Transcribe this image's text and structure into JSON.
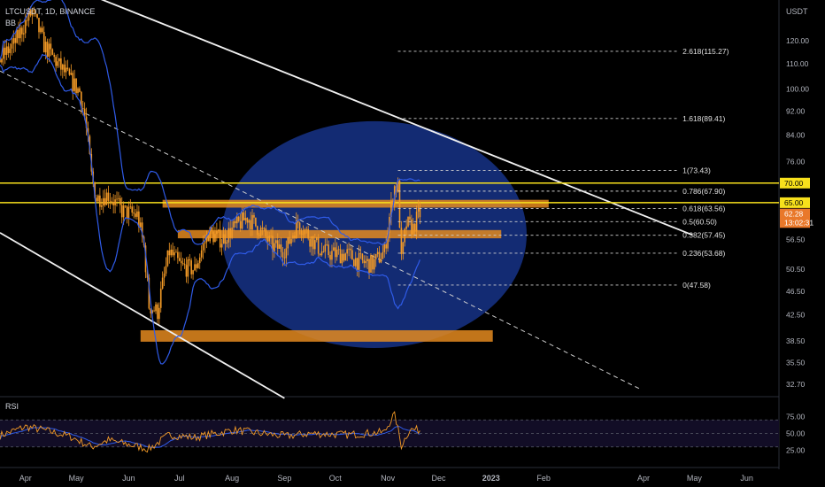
{
  "header": {
    "symbol_line": "LTCUSDT, 1D, BINANCE",
    "indicator_bb": "BB"
  },
  "price_axis": {
    "currency": "USDT",
    "ticks": [
      "120.00",
      "110.00",
      "100.00",
      "92.00",
      "84.00",
      "76.00",
      "56.50",
      "50.50",
      "46.50",
      "42.50",
      "38.50",
      "35.50",
      "32.70"
    ],
    "tick_values": [
      120,
      110,
      100,
      92,
      84,
      76,
      56.5,
      50.5,
      46.5,
      42.5,
      38.5,
      35.5,
      32.7
    ],
    "level_labels": [
      {
        "text": "70.00",
        "value": 70.0,
        "color": "#f7e01c",
        "text_color": "#000000"
      },
      {
        "text": "65.00",
        "value": 65.0,
        "color": "#f7e01c",
        "text_color": "#000000"
      },
      {
        "text": "62.28",
        "value": 62.28,
        "color": "#e9782a",
        "text_color": "#ffffff"
      },
      {
        "text": "13:02:31",
        "value": 60.3,
        "color": "#e9782a",
        "text_color": "#ffffff"
      }
    ]
  },
  "time_axis": {
    "labels": [
      "Apr",
      "May",
      "Jun",
      "Jul",
      "Aug",
      "Sep",
      "Oct",
      "Nov",
      "Dec",
      "2023",
      "Feb",
      "Apr",
      "May",
      "Jun"
    ],
    "bold": [
      "2023"
    ]
  },
  "fib_levels": [
    {
      "label": "2.618(115.27)",
      "value": 115.27
    },
    {
      "label": "1.618(89.41)",
      "value": 89.41
    },
    {
      "label": "1(73.43)",
      "value": 73.43
    },
    {
      "label": "0.786(67.90)",
      "value": 67.9
    },
    {
      "label": "0.618(63.56)",
      "value": 63.56
    },
    {
      "label": "0.5(60.50)",
      "value": 60.5
    },
    {
      "label": "0.382(57.45)",
      "value": 57.45
    },
    {
      "label": "0.236(53.68)",
      "value": 53.68
    },
    {
      "label": "0(47.58)",
      "value": 47.58
    }
  ],
  "rsi": {
    "title": "RSI",
    "ticks": [
      "75.00",
      "50.00",
      "25.00"
    ],
    "tick_values": [
      75,
      50,
      25
    ],
    "band": [
      30,
      70
    ]
  },
  "colors": {
    "candle": "#f39a26",
    "bb": "#2f5be8",
    "fib": "#cfcfcf",
    "hline": "#f7e01c",
    "zone": "#e48a1f",
    "circle": "#1a3a9a",
    "rsi": "#f39a26",
    "rsi_ma": "#2f5be8"
  },
  "chart_data": {
    "type": "candlestick",
    "symbol": "LTCUSDT",
    "timeframe": "1D",
    "exchange": "BINANCE",
    "y_scale": "log",
    "ylim": [
      31.5,
      140
    ],
    "x_range": [
      "2022-03-17",
      "2023-06-20"
    ],
    "price_path": [
      [
        "2022-03-17",
        112
      ],
      [
        "2022-03-25",
        118
      ],
      [
        "2022-04-02",
        130
      ],
      [
        "2022-04-05",
        134
      ],
      [
        "2022-04-12",
        118
      ],
      [
        "2022-04-20",
        110
      ],
      [
        "2022-04-28",
        103
      ],
      [
        "2022-05-03",
        99
      ],
      [
        "2022-05-06",
        90
      ],
      [
        "2022-05-10",
        72
      ],
      [
        "2022-05-13",
        66
      ],
      [
        "2022-05-20",
        67
      ],
      [
        "2022-05-28",
        63
      ],
      [
        "2022-06-06",
        62
      ],
      [
        "2022-06-10",
        55
      ],
      [
        "2022-06-13",
        44
      ],
      [
        "2022-06-18",
        43
      ],
      [
        "2022-06-25",
        54
      ],
      [
        "2022-07-02",
        51
      ],
      [
        "2022-07-10",
        50.5
      ],
      [
        "2022-07-18",
        58
      ],
      [
        "2022-07-26",
        56.5
      ],
      [
        "2022-08-02",
        59
      ],
      [
        "2022-08-10",
        61.5
      ],
      [
        "2022-08-18",
        58.5
      ],
      [
        "2022-08-25",
        55
      ],
      [
        "2022-09-02",
        54.5
      ],
      [
        "2022-09-09",
        60.5
      ],
      [
        "2022-09-16",
        57
      ],
      [
        "2022-09-23",
        54
      ],
      [
        "2022-10-01",
        53.5
      ],
      [
        "2022-10-08",
        53.5
      ],
      [
        "2022-10-15",
        52
      ],
      [
        "2022-10-23",
        51.5
      ],
      [
        "2022-10-30",
        54
      ],
      [
        "2022-11-05",
        69
      ],
      [
        "2022-11-07",
        69
      ],
      [
        "2022-11-09",
        52
      ],
      [
        "2022-11-12",
        60
      ],
      [
        "2022-11-16",
        59
      ],
      [
        "2022-11-19",
        62
      ],
      [
        "2022-11-20",
        62.28
      ]
    ],
    "horizontal_levels": [
      70.0,
      65.0
    ],
    "zones": [
      {
        "from": "2022-06-21",
        "to": "2023-02-04",
        "low": 63.8,
        "high": 65.7
      },
      {
        "from": "2022-06-30",
        "to": "2023-01-07",
        "low": 56.8,
        "high": 58.6
      },
      {
        "from": "2022-06-08",
        "to": "2023-01-02",
        "low": 38.4,
        "high": 40.1
      }
    ],
    "trendlines": [
      {
        "style": "solid",
        "from": [
          "2022-05-14",
          141
        ],
        "to": [
          "2023-04-30",
          57.5
        ]
      },
      {
        "style": "solid",
        "from": [
          "2022-03-17",
          58
        ],
        "to": [
          "2022-09-01",
          31
        ]
      },
      {
        "style": "dashed",
        "from": [
          "2022-03-17",
          107
        ],
        "to": [
          "2023-03-31",
          32
        ]
      }
    ],
    "ellipse": {
      "center": [
        "2022-10-24",
        51.0
      ],
      "rx_days": 90,
      "low": 37.5,
      "high": 88.5
    },
    "rsi_path": [
      [
        "2022-03-17",
        47
      ],
      [
        "2022-04-01",
        60
      ],
      [
        "2022-04-12",
        55
      ],
      [
        "2022-04-28",
        45
      ],
      [
        "2022-05-10",
        30
      ],
      [
        "2022-05-20",
        40
      ],
      [
        "2022-06-13",
        27
      ],
      [
        "2022-06-25",
        48
      ],
      [
        "2022-07-10",
        44
      ],
      [
        "2022-08-02",
        55
      ],
      [
        "2022-08-18",
        50
      ],
      [
        "2022-09-02",
        46
      ],
      [
        "2022-09-16",
        50
      ],
      [
        "2022-10-08",
        48
      ],
      [
        "2022-10-30",
        52
      ],
      [
        "2022-11-05",
        80
      ],
      [
        "2022-11-09",
        32
      ],
      [
        "2022-11-14",
        56
      ],
      [
        "2022-11-20",
        55
      ]
    ]
  }
}
